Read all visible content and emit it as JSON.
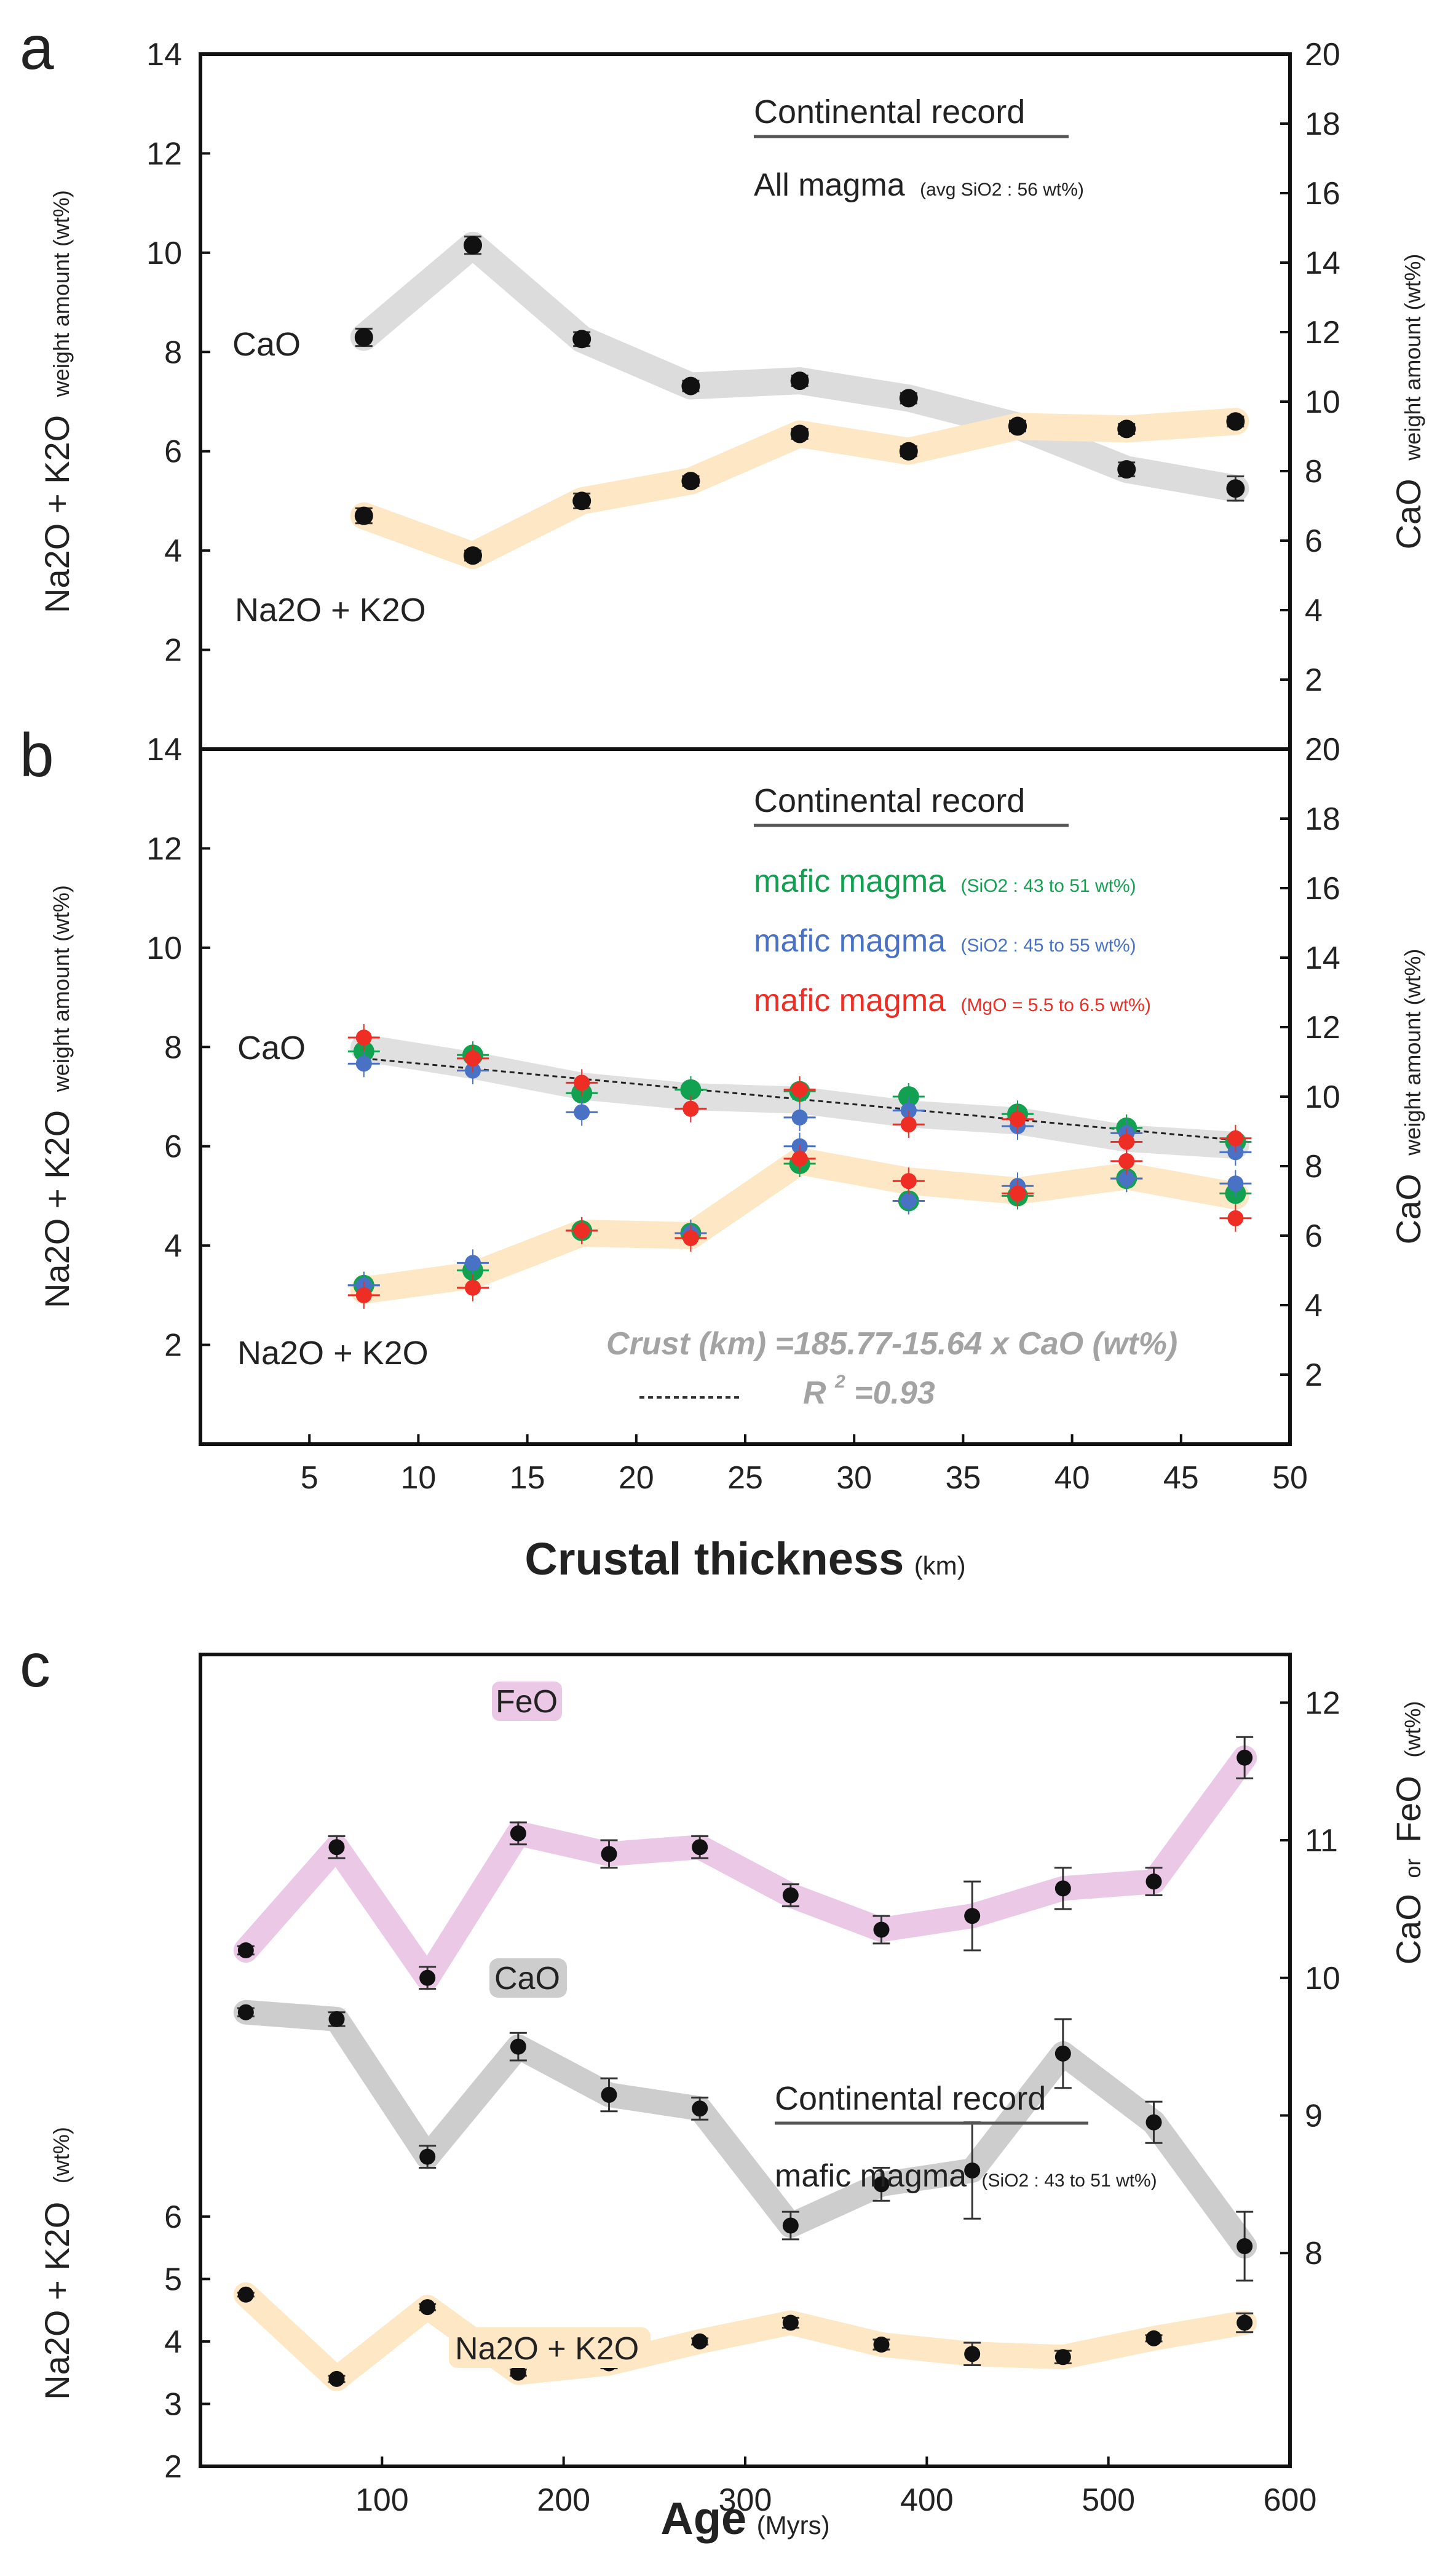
{
  "figure_labels": {
    "a": "a",
    "b": "b",
    "c": "c"
  },
  "chart_data": [
    {
      "id": "a",
      "type": "line",
      "panel_label": "a",
      "legend_title": "Continental record",
      "legend_main": "All magma",
      "legend_sub": "(avg SiO2 : 56 wt%)",
      "x": [
        7.5,
        12.5,
        17.5,
        22.5,
        27.5,
        32.5,
        37.5,
        42.5,
        47.5
      ],
      "xlim": [
        0,
        50
      ],
      "ylim_left": [
        0,
        14
      ],
      "yticks_left": [
        2,
        4,
        6,
        8,
        10,
        12,
        14
      ],
      "ylim_right": [
        0,
        20
      ],
      "yticks_right": [
        2,
        4,
        6,
        8,
        10,
        12,
        14,
        16,
        18,
        20
      ],
      "ylabel_left_main": "Na2O + K2O",
      "ylabel_left_small": "weight amount (wt%)",
      "ylabel_right_main": "CaO",
      "ylabel_right_small": "weight amount (wt%)",
      "series": [
        {
          "name": "CaO",
          "label": "CaO",
          "axis": "right",
          "band": "#dcdcdc",
          "values": [
            11.85,
            14.5,
            11.8,
            10.45,
            10.6,
            10.1,
            9.3,
            8.05,
            7.5
          ],
          "err": [
            0.25,
            0.25,
            0.2,
            0.15,
            0.15,
            0.15,
            0.15,
            0.2,
            0.35
          ]
        },
        {
          "name": "Na2O + K2O",
          "label": "Na2O + K2O",
          "axis": "left",
          "band": "#fde7c4",
          "values": [
            4.7,
            3.9,
            5.0,
            5.4,
            6.35,
            6.0,
            6.5,
            6.45,
            6.6
          ],
          "err": [
            0.15,
            0.1,
            0.15,
            0.1,
            0.1,
            0.1,
            0.1,
            0.1,
            0.1
          ]
        }
      ]
    },
    {
      "id": "b",
      "type": "line",
      "panel_label": "b",
      "legend_title": "Continental record",
      "legend_entries": [
        {
          "main": "mafic magma",
          "sub": "(SiO2 : 43 to 51 wt%)",
          "color": "#12a150"
        },
        {
          "main": "mafic magma",
          "sub": "(SiO2 : 45 to 55 wt%)",
          "color": "#4a72c4"
        },
        {
          "main": "mafic magma",
          "sub": "(MgO = 5.5 to 6.5 wt%)",
          "color": "#ee2d24"
        }
      ],
      "x": [
        7.5,
        12.5,
        17.5,
        22.5,
        27.5,
        32.5,
        37.5,
        42.5,
        47.5
      ],
      "xlim": [
        0,
        50
      ],
      "xticks": [
        5,
        10,
        15,
        20,
        25,
        30,
        35,
        40,
        45,
        50
      ],
      "xlabel_main": "Crustal thickness",
      "xlabel_unit": "(km)",
      "ylim_left": [
        0,
        14
      ],
      "yticks_left": [
        2,
        4,
        6,
        8,
        10,
        12,
        14
      ],
      "ylim_right": [
        0,
        20
      ],
      "yticks_right": [
        2,
        4,
        6,
        8,
        10,
        12,
        14,
        16,
        18,
        20
      ],
      "ylabel_left_main": "Na2O + K2O",
      "ylabel_left_small": "weight amount (wt%)",
      "ylabel_right_main": "CaO",
      "ylabel_right_small": "weight amount (wt%)",
      "cao_label": "CaO",
      "alkali_label": "Na2O + K2O",
      "cao_band": [
        11.4,
        10.9,
        10.3,
        10.0,
        9.9,
        9.5,
        9.3,
        8.8,
        8.6
      ],
      "alkali_band": [
        3.1,
        3.4,
        4.25,
        4.2,
        5.7,
        5.3,
        5.1,
        5.4,
        5.0
      ],
      "regression": {
        "equation": "Crust (km) =185.77-15.64 x CaO (wt%)",
        "r2_label": "R",
        "r2_sup": "2",
        "r2_value": "=0.93",
        "y_start": 11.1,
        "y_end": 8.75
      },
      "series": [
        {
          "name": "mafic magma (SiO2 : 43 to 51 wt%) CaO",
          "axis": "right",
          "color": "#12a150",
          "values": [
            11.3,
            11.2,
            10.1,
            10.2,
            10.15,
            10.0,
            9.5,
            9.1,
            8.7
          ]
        },
        {
          "name": "mafic magma (SiO2 : 45 to 55 wt%) CaO",
          "axis": "right",
          "color": "#4a72c4",
          "values": [
            10.95,
            10.75,
            9.55,
            9.65,
            9.4,
            9.6,
            9.15,
            8.95,
            8.4
          ]
        },
        {
          "name": "mafic magma (MgO = 5.5 to 6.5 wt%) CaO",
          "axis": "right",
          "color": "#ee2d24",
          "values": [
            11.7,
            11.1,
            10.4,
            9.65,
            10.2,
            9.2,
            9.35,
            8.7,
            8.8
          ]
        },
        {
          "name": "mafic magma (SiO2 : 43 to 51 wt%) Na2O + K2O",
          "axis": "left",
          "color": "#12a150",
          "values": [
            3.2,
            3.5,
            4.3,
            4.25,
            5.65,
            4.9,
            5.0,
            5.35,
            5.05
          ]
        },
        {
          "name": "mafic magma (SiO2 : 45 to 55 wt%) Na2O + K2O",
          "axis": "left",
          "color": "#4a72c4",
          "values": [
            3.2,
            3.65,
            4.3,
            4.25,
            6.0,
            4.9,
            5.2,
            5.35,
            5.25
          ]
        },
        {
          "name": "mafic magma (MgO = 5.5 to 6.5 wt%) Na2O + K2O",
          "axis": "left",
          "color": "#ee2d24",
          "values": [
            3.0,
            3.15,
            4.3,
            4.15,
            5.75,
            5.3,
            5.05,
            5.7,
            4.55
          ]
        }
      ]
    },
    {
      "id": "c",
      "type": "line",
      "panel_label": "c",
      "legend_title": "Continental record",
      "legend_main": "mafic magma",
      "legend_sub": "(SiO2 : 43 to 51 wt%)",
      "x": [
        25,
        75,
        125,
        175,
        225,
        275,
        325,
        375,
        425,
        475,
        525,
        575
      ],
      "xlim": [
        0,
        600
      ],
      "xticks": [
        100,
        200,
        300,
        400,
        500,
        600
      ],
      "xlabel_main": "Age",
      "xlabel_unit": "(Myrs)",
      "ylim_left": [
        2,
        15
      ],
      "yticks_left": [
        2,
        3,
        4,
        5,
        6
      ],
      "ylim_right": [
        6.45,
        12.35
      ],
      "yticks_right": [
        8,
        9,
        10,
        11,
        12
      ],
      "ylabel_left_main": "Na2O + K2O",
      "ylabel_left_small": "(wt%)",
      "ylabel_right_main1": "CaO",
      "ylabel_right_small": "or",
      "ylabel_right_main2": "FeO",
      "ylabel_right_small2": "(wt%)",
      "series": [
        {
          "name": "FeO",
          "label": "FeO",
          "axis": "right",
          "band": "#ebc9e6",
          "values": [
            10.2,
            10.95,
            10.0,
            11.05,
            10.9,
            10.95,
            10.6,
            10.35,
            10.45,
            10.65,
            10.7,
            11.6
          ],
          "err": [
            0.03,
            0.08,
            0.08,
            0.08,
            0.1,
            0.08,
            0.08,
            0.1,
            0.25,
            0.15,
            0.1,
            0.15
          ]
        },
        {
          "name": "CaO",
          "label": "CaO",
          "axis": "right",
          "band": "#cdcdcd",
          "values": [
            9.75,
            9.7,
            8.7,
            9.5,
            9.15,
            9.05,
            8.2,
            8.5,
            8.6,
            9.45,
            8.95,
            8.05
          ],
          "err": [
            0.03,
            0.05,
            0.08,
            0.1,
            0.12,
            0.08,
            0.1,
            0.12,
            0.35,
            0.25,
            0.15,
            0.25
          ]
        },
        {
          "name": "Na2O + K2O",
          "label": "Na2O + K2O",
          "axis": "left",
          "band": "#fde7c4",
          "values": [
            4.75,
            3.4,
            4.55,
            3.5,
            3.65,
            4.0,
            4.3,
            3.95,
            3.8,
            3.75,
            4.05,
            4.3
          ],
          "err": [
            0.03,
            0.05,
            0.05,
            0.05,
            0.08,
            0.05,
            0.08,
            0.08,
            0.18,
            0.1,
            0.05,
            0.15
          ]
        }
      ]
    }
  ]
}
